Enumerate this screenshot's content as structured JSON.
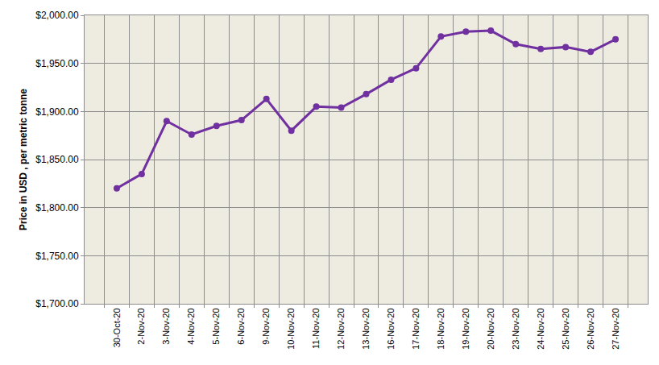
{
  "chart_data": {
    "type": "line",
    "y_label": "Price in USD , per metric tonne",
    "categories": [
      "30-Oct-20",
      "2-Nov-20",
      "3-Nov-20",
      "4-Nov-20",
      "5-Nov-20",
      "6-Nov-20",
      "9-Nov-20",
      "10-Nov-20",
      "11-Nov-20",
      "12-Nov-20",
      "13-Nov-20",
      "16-Nov-20",
      "17-Nov-20",
      "18-Nov-20",
      "19-Nov-20",
      "20-Nov-20",
      "23-Nov-20",
      "24-Nov-20",
      "25-Nov-20",
      "26-Nov-20",
      "27-Nov-20"
    ],
    "values": [
      1820,
      1835,
      1890,
      1876,
      1885,
      1891,
      1913,
      1880,
      1905,
      1904,
      1918,
      1933,
      1945,
      1978,
      1983,
      1984,
      1970,
      1965,
      1967,
      1962,
      1975
    ],
    "color": "#7030a0",
    "marker": "circle",
    "ylim": [
      1700,
      2000
    ],
    "yticks": [
      {
        "value": 1700,
        "label": "$1,700.00"
      },
      {
        "value": 1750,
        "label": "$1,750.00"
      },
      {
        "value": 1800,
        "label": "$1,800.00"
      },
      {
        "value": 1850,
        "label": "$1,850.00"
      },
      {
        "value": 1900,
        "label": "$1,900.00"
      },
      {
        "value": 1950,
        "label": "$1,950.00"
      },
      {
        "value": 2000,
        "label": "$2,000.00"
      }
    ],
    "grid": true
  }
}
